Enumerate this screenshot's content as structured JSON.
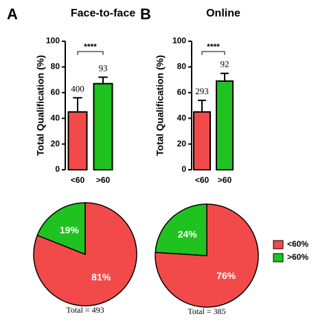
{
  "chart_data": [
    {
      "type": "bar",
      "panel": "A",
      "title": "Face-to-face",
      "y_label": "Total Qualification (%)",
      "categories": [
        "<60",
        ">60"
      ],
      "values": [
        45,
        67
      ],
      "errors": [
        11,
        5
      ],
      "annotations": [
        "400",
        "93"
      ],
      "colors": [
        "#f24a4a",
        "#1fc21f"
      ],
      "significance": "****",
      "ylim": [
        0,
        100
      ],
      "yticks": [
        0,
        20,
        40,
        60,
        80,
        100
      ]
    },
    {
      "type": "bar",
      "panel": "B",
      "title": "Online",
      "y_label": "Total Qualification (%)",
      "categories": [
        "<60",
        ">60"
      ],
      "values": [
        45,
        69
      ],
      "errors": [
        9,
        6
      ],
      "annotations": [
        "293",
        "92"
      ],
      "colors": [
        "#f24a4a",
        "#1fc21f"
      ],
      "significance": "****",
      "ylim": [
        0,
        100
      ],
      "yticks": [
        0,
        20,
        40,
        60,
        80,
        100
      ]
    },
    {
      "type": "pie",
      "categories": [
        "<60%",
        ">60%"
      ],
      "values": [
        81,
        19
      ],
      "value_labels": [
        "81%",
        "19%"
      ],
      "colors": [
        "#f24a4a",
        "#1fc21f"
      ],
      "total_label": "Total = 493"
    },
    {
      "type": "pie",
      "categories": [
        "<60%",
        ">60%"
      ],
      "values": [
        76,
        24
      ],
      "value_labels": [
        "76%",
        "24%"
      ],
      "colors": [
        "#f24a4a",
        "#1fc21f"
      ],
      "total_label": "Total = 385",
      "legend": "right"
    }
  ]
}
